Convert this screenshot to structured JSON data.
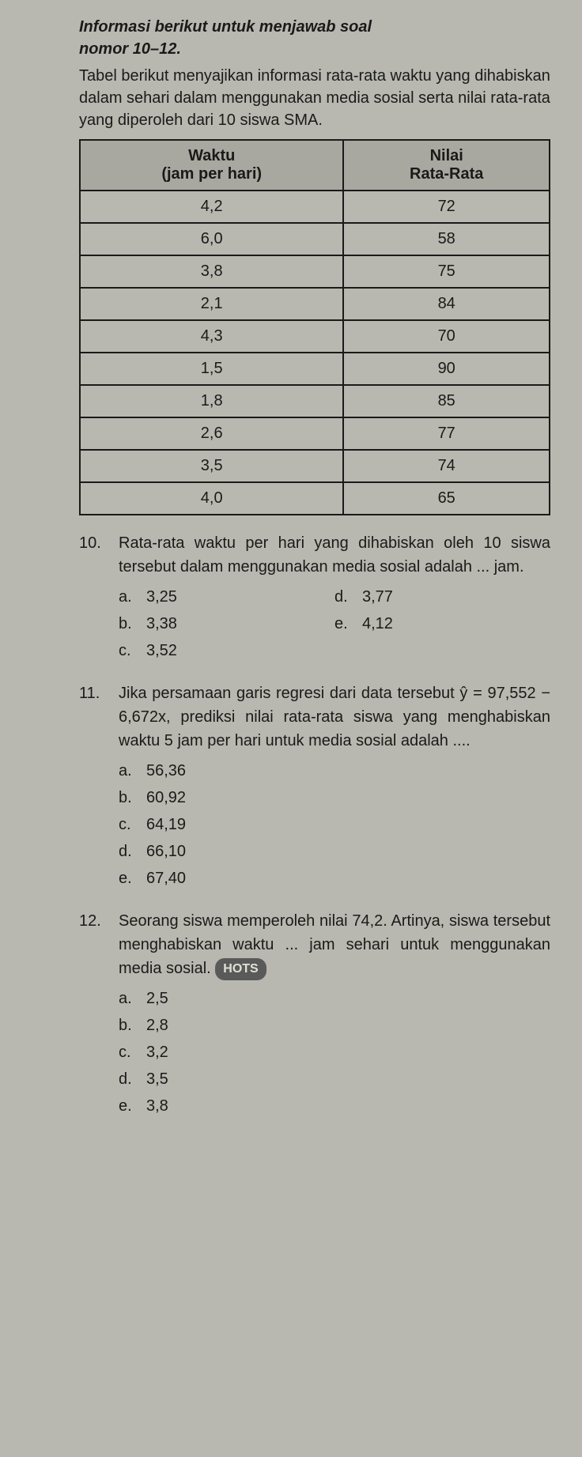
{
  "header": {
    "line1": "Informasi berikut untuk menjawab soal",
    "line2": "nomor 10–12."
  },
  "description": "Tabel berikut menyajikan informasi rata-rata waktu yang dihabiskan dalam sehari dalam menggunakan media sosial serta nilai rata-rata yang diperoleh dari 10 siswa SMA.",
  "table": {
    "columns": [
      {
        "line1": "Waktu",
        "line2": "(jam per hari)"
      },
      {
        "line1": "Nilai",
        "line2": "Rata-Rata"
      }
    ],
    "rows": [
      [
        "4,2",
        "72"
      ],
      [
        "6,0",
        "58"
      ],
      [
        "3,8",
        "75"
      ],
      [
        "2,1",
        "84"
      ],
      [
        "4,3",
        "70"
      ],
      [
        "1,5",
        "90"
      ],
      [
        "1,8",
        "85"
      ],
      [
        "2,6",
        "77"
      ],
      [
        "3,5",
        "74"
      ],
      [
        "4,0",
        "65"
      ]
    ]
  },
  "questions": {
    "q10": {
      "number": "10.",
      "text": "Rata-rata waktu per hari yang dihabiskan oleh 10 siswa tersebut dalam menggunakan media sosial adalah ... jam.",
      "options": {
        "a": {
          "letter": "a.",
          "value": "3,25"
        },
        "b": {
          "letter": "b.",
          "value": "3,38"
        },
        "c": {
          "letter": "c.",
          "value": "3,52"
        },
        "d": {
          "letter": "d.",
          "value": "3,77"
        },
        "e": {
          "letter": "e.",
          "value": "4,12"
        }
      }
    },
    "q11": {
      "number": "11.",
      "text": "Jika persamaan garis regresi dari data tersebut ŷ = 97,552 − 6,672x, prediksi nilai rata-rata siswa yang menghabiskan waktu 5 jam per hari untuk media sosial adalah ....",
      "options": {
        "a": {
          "letter": "a.",
          "value": "56,36"
        },
        "b": {
          "letter": "b.",
          "value": "60,92"
        },
        "c": {
          "letter": "c.",
          "value": "64,19"
        },
        "d": {
          "letter": "d.",
          "value": "66,10"
        },
        "e": {
          "letter": "e.",
          "value": "67,40"
        }
      }
    },
    "q12": {
      "number": "12.",
      "text_before": "Seorang siswa memperoleh nilai 74,2. Artinya, siswa tersebut menghabiskan waktu ... jam sehari untuk menggunakan media sosial.",
      "badge": "HOTS",
      "options": {
        "a": {
          "letter": "a.",
          "value": "2,5"
        },
        "b": {
          "letter": "b.",
          "value": "2,8"
        },
        "c": {
          "letter": "c.",
          "value": "3,2"
        },
        "d": {
          "letter": "d.",
          "value": "3,5"
        },
        "e": {
          "letter": "e.",
          "value": "3,8"
        }
      }
    }
  }
}
